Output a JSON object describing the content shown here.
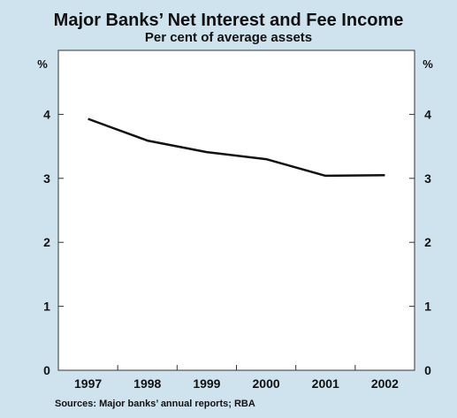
{
  "chart_data": {
    "type": "line",
    "title": "Major Banks’ Net Interest and Fee Income",
    "subtitle": "Per cent of average assets",
    "y_unit_left": "%",
    "y_unit_right": "%",
    "categories": [
      "1997",
      "1998",
      "1999",
      "2000",
      "2001",
      "2002"
    ],
    "series": [
      {
        "values": [
          3.93,
          3.59,
          3.41,
          3.3,
          3.04,
          3.05
        ]
      }
    ],
    "ylim": [
      0,
      5
    ],
    "yticks": [
      0,
      1,
      2,
      3,
      4
    ],
    "source": "Sources: Major banks’ annual reports; RBA",
    "grid": false,
    "colors": {
      "background": "#cfe3ef",
      "plot": "#ffffff",
      "line": "#111111"
    }
  }
}
